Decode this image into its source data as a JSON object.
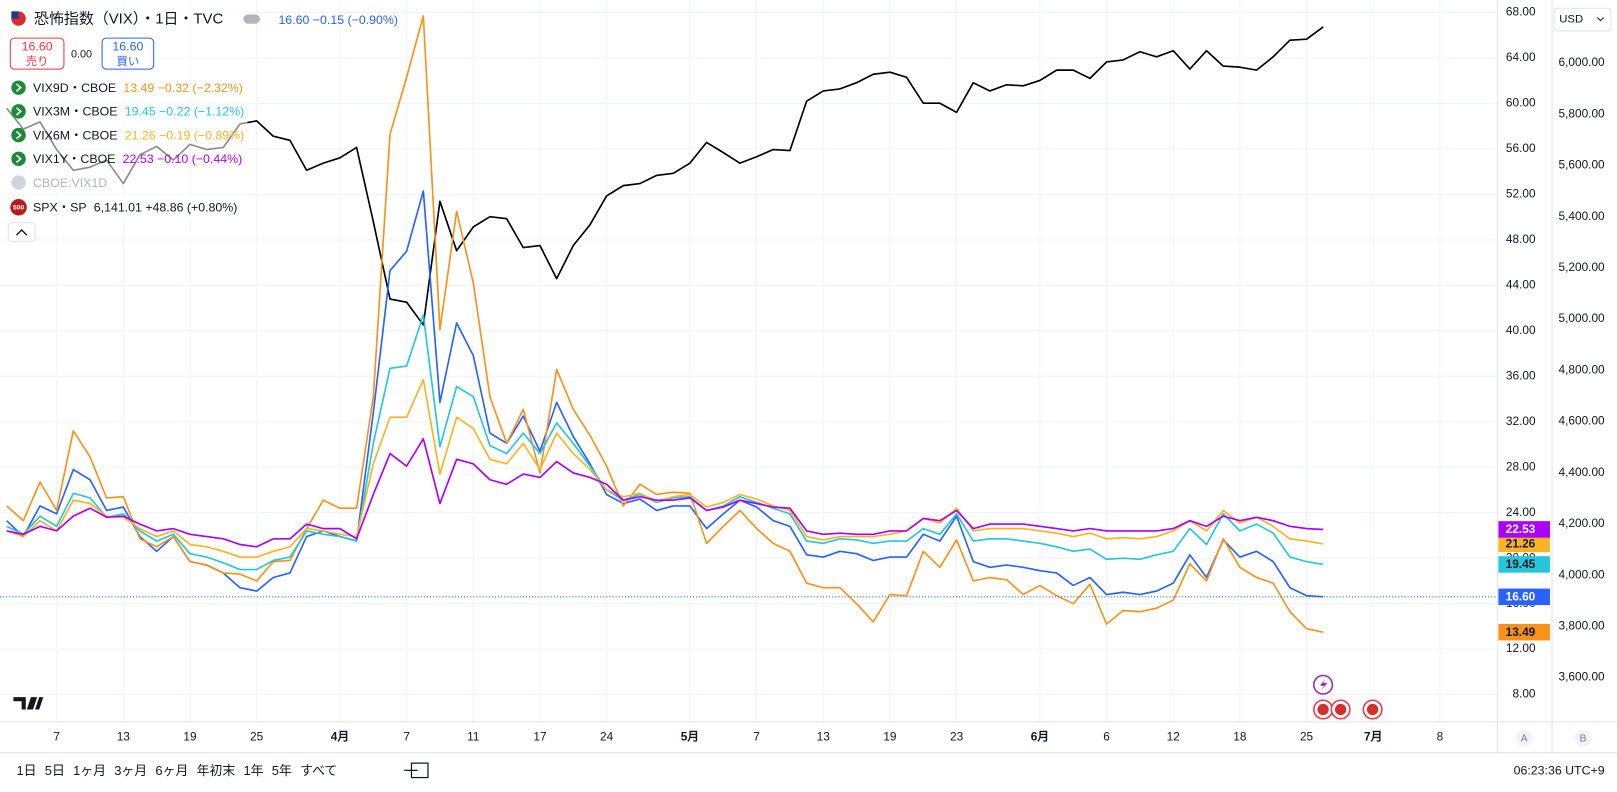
{
  "quote": {
    "sell": {
      "price": "16.60",
      "label": "売り"
    },
    "spread": "0.00",
    "buy": {
      "price": "16.60",
      "label": "買い"
    }
  },
  "legend_extra": {
    "name": "CBOE:VIX1D"
  },
  "currency": "USD",
  "axis_buttons": [
    "A",
    "B"
  ],
  "range_buttons": [
    "1日",
    "5日",
    "1ヶ月",
    "3ヶ月",
    "6ヶ月",
    "年初末",
    "1年",
    "5年",
    "すべて"
  ],
  "clock": "06:23:36 UTC+9",
  "chart_data": {
    "type": "line",
    "x": [
      -3,
      -2,
      -1,
      0,
      1,
      2,
      3,
      4,
      5,
      6,
      7,
      8,
      9,
      10,
      11,
      12,
      13,
      14,
      15,
      16,
      17,
      18,
      19,
      20,
      21,
      22,
      23,
      24,
      25,
      26,
      27,
      28,
      29,
      30,
      31,
      32,
      33,
      34,
      35,
      36,
      37,
      38,
      39,
      40,
      41,
      42,
      43,
      44,
      45,
      46,
      47,
      48,
      49,
      50,
      51,
      52,
      53,
      54,
      55,
      56,
      57,
      58,
      59,
      60,
      61,
      62,
      63,
      64,
      65,
      66,
      67,
      68,
      69,
      70,
      71,
      72,
      73,
      74,
      75,
      76
    ],
    "xlim": [
      -3.4,
      86.45
    ],
    "xticks": [
      {
        "value": 0,
        "label": "7"
      },
      {
        "value": 4,
        "label": "13"
      },
      {
        "value": 8,
        "label": "19"
      },
      {
        "value": 12,
        "label": "25"
      },
      {
        "value": 17,
        "label": "4月"
      },
      {
        "value": 21,
        "label": "7"
      },
      {
        "value": 25,
        "label": "11"
      },
      {
        "value": 29,
        "label": "17"
      },
      {
        "value": 33,
        "label": "24"
      },
      {
        "value": 38,
        "label": "5月"
      },
      {
        "value": 42,
        "label": "7"
      },
      {
        "value": 46,
        "label": "13"
      },
      {
        "value": 50,
        "label": "19"
      },
      {
        "value": 54,
        "label": "23"
      },
      {
        "value": 59,
        "label": "6月"
      },
      {
        "value": 63,
        "label": "6"
      },
      {
        "value": 67,
        "label": "12"
      },
      {
        "value": 71,
        "label": "18"
      },
      {
        "value": 75,
        "label": "25"
      },
      {
        "value": 79,
        "label": "7月"
      },
      {
        "value": 83,
        "label": "8"
      }
    ],
    "ylim": [
      5.6,
      69.1
    ],
    "yticks": [
      {
        "value": 8,
        "label": "8.00"
      },
      {
        "value": 12,
        "label": "12.00"
      },
      {
        "value": 16,
        "label": "16.00"
      },
      {
        "value": 20,
        "label": "20.00"
      },
      {
        "value": 24,
        "label": "24.00"
      },
      {
        "value": 28,
        "label": "28.00"
      },
      {
        "value": 32,
        "label": "32.00"
      },
      {
        "value": 36,
        "label": "36.00"
      },
      {
        "value": 40,
        "label": "40.00"
      },
      {
        "value": 44,
        "label": "44.00"
      },
      {
        "value": 48,
        "label": "48.00"
      },
      {
        "value": 52,
        "label": "52.00"
      },
      {
        "value": 56,
        "label": "56.00"
      },
      {
        "value": 60,
        "label": "60.00"
      },
      {
        "value": 64,
        "label": "64.00"
      },
      {
        "value": 68,
        "label": "68.00"
      }
    ],
    "y2lim": [
      3427,
      6246
    ],
    "y2ticks": [
      {
        "value": 3600,
        "label": "3,600.00"
      },
      {
        "value": 3800,
        "label": "3,800.00"
      },
      {
        "value": 4000,
        "label": "4,000.00"
      },
      {
        "value": 4200,
        "label": "4,200.00"
      },
      {
        "value": 4400,
        "label": "4,400.00"
      },
      {
        "value": 4600,
        "label": "4,600.00"
      },
      {
        "value": 4800,
        "label": "4,800.00"
      },
      {
        "value": 5000,
        "label": "5,000.00"
      },
      {
        "value": 5200,
        "label": "5,200.00"
      },
      {
        "value": 5400,
        "label": "5,400.00"
      },
      {
        "value": 5600,
        "label": "5,600.00"
      },
      {
        "value": 5800,
        "label": "5,800.00"
      },
      {
        "value": 6000,
        "label": "6,000.00"
      }
    ],
    "grid": true,
    "series": [
      {
        "name": "恐怖指数（VIX）・1日・TVC",
        "legend_value": "16.60 −0.15 (−0.90%)",
        "last_label": "16.60",
        "color": "#2962ff",
        "values": [
          23.3,
          21.9,
          24.6,
          23.9,
          27.8,
          26.9,
          24.2,
          24.5,
          21.9,
          20.6,
          21.9,
          19.7,
          19.4,
          18.7,
          17.4,
          17.1,
          18.3,
          18.7,
          21.9,
          22.4,
          21.9,
          21.5,
          32.8,
          45.3,
          47.0,
          52.3,
          33.7,
          40.7,
          37.8,
          31.0,
          30.1,
          32.5,
          29.4,
          33.7,
          30.7,
          28.3,
          25.6,
          24.8,
          25.2,
          24.2,
          24.6,
          24.6,
          22.6,
          23.9,
          25.1,
          24.5,
          23.3,
          22.8,
          20.3,
          20.1,
          20.6,
          20.4,
          19.8,
          20.1,
          20.1,
          22.1,
          21.5,
          23.7,
          19.7,
          19.2,
          19.4,
          19.2,
          18.9,
          18.7,
          17.6,
          18.3,
          16.8,
          17.0,
          16.8,
          17.1,
          17.8,
          20.3,
          18.3,
          21.6,
          20.1,
          20.6,
          19.7,
          17.4,
          16.7,
          16.6
        ]
      },
      {
        "name": "VIX9D・CBOE",
        "legend_value": "13.49 −0.32 (−2.32%)",
        "last_label": "13.49",
        "color": "#f7931a",
        "values": [
          24.6,
          23.3,
          26.7,
          24.2,
          31.2,
          28.9,
          25.3,
          25.4,
          21.7,
          21.0,
          21.9,
          19.7,
          19.4,
          18.7,
          18.6,
          18.0,
          19.7,
          19.8,
          22.6,
          25.1,
          24.4,
          24.4,
          34.2,
          57.3,
          62.3,
          67.7,
          40.1,
          50.5,
          44.2,
          34.2,
          30.1,
          33.1,
          27.5,
          36.6,
          33.1,
          30.8,
          28.1,
          24.6,
          26.5,
          25.6,
          25.8,
          25.7,
          21.3,
          22.8,
          24.2,
          22.6,
          21.3,
          20.6,
          17.8,
          17.4,
          17.4,
          16.0,
          14.4,
          16.8,
          16.7,
          20.6,
          19.2,
          21.6,
          18.0,
          18.3,
          18.1,
          16.8,
          17.6,
          16.7,
          16.0,
          17.7,
          14.2,
          15.4,
          15.3,
          15.6,
          16.3,
          19.5,
          18.0,
          21.7,
          19.2,
          18.3,
          17.8,
          15.3,
          13.8,
          13.49
        ]
      },
      {
        "name": "VIX3M・CBOE",
        "legend_value": "19.45 −0.22 (−1.12%)",
        "last_label": "19.45",
        "color": "#26c6da",
        "values": [
          22.8,
          22.1,
          23.7,
          22.8,
          25.7,
          25.3,
          23.6,
          23.9,
          22.4,
          21.5,
          22.1,
          20.4,
          20.1,
          19.6,
          19.0,
          19.0,
          19.8,
          20.1,
          22.4,
          22.1,
          21.9,
          21.5,
          30.1,
          36.7,
          36.9,
          41.4,
          29.8,
          35.1,
          34.2,
          29.9,
          29.2,
          31.0,
          29.2,
          31.9,
          30.1,
          28.1,
          26.0,
          25.1,
          25.6,
          24.9,
          25.3,
          25.4,
          24.2,
          24.6,
          25.4,
          24.9,
          24.4,
          23.9,
          21.5,
          21.3,
          21.7,
          21.6,
          21.3,
          21.5,
          21.5,
          22.6,
          22.1,
          23.9,
          21.5,
          21.7,
          21.7,
          21.5,
          21.3,
          21.0,
          20.6,
          20.8,
          19.9,
          20.0,
          19.9,
          20.3,
          20.6,
          22.6,
          21.2,
          23.9,
          22.4,
          23.0,
          22.2,
          20.1,
          19.7,
          19.45
        ]
      },
      {
        "name": "VIX6M・CBOE",
        "legend_value": "21.26 −0.19 (−0.89%)",
        "last_label": "21.26",
        "color": "#fbb324",
        "values": [
          22.4,
          21.9,
          23.3,
          22.4,
          25.1,
          24.8,
          23.7,
          23.6,
          22.6,
          21.9,
          22.4,
          21.2,
          21.0,
          20.6,
          20.1,
          20.1,
          20.6,
          21.0,
          22.6,
          22.4,
          22.1,
          21.9,
          28.3,
          32.4,
          32.4,
          35.7,
          27.4,
          32.4,
          31.4,
          28.7,
          28.3,
          30.1,
          27.8,
          31.0,
          29.2,
          27.8,
          26.0,
          25.4,
          25.7,
          25.0,
          25.4,
          25.6,
          24.5,
          24.9,
          25.6,
          25.2,
          24.6,
          24.2,
          21.9,
          21.6,
          21.9,
          21.9,
          21.9,
          22.1,
          22.4,
          23.5,
          23.1,
          24.4,
          22.4,
          22.6,
          22.6,
          22.6,
          22.4,
          22.2,
          21.9,
          22.2,
          21.7,
          21.8,
          21.7,
          21.9,
          22.4,
          23.3,
          22.4,
          24.2,
          23.1,
          23.6,
          22.8,
          21.7,
          21.5,
          21.26
        ]
      },
      {
        "name": "VIX1Y・CBOE",
        "legend_value": "22.53 −0.10 (−0.44%)",
        "last_label": "22.53",
        "color": "#aa00ff",
        "values": [
          22.4,
          22.1,
          22.8,
          22.4,
          23.7,
          24.4,
          23.6,
          23.7,
          23.0,
          22.4,
          22.6,
          22.1,
          21.9,
          21.7,
          21.2,
          21.0,
          21.7,
          21.7,
          23.0,
          22.6,
          22.6,
          21.7,
          25.6,
          29.2,
          28.1,
          30.5,
          24.8,
          28.7,
          28.3,
          26.9,
          26.5,
          27.4,
          27.1,
          28.5,
          27.5,
          27.1,
          26.5,
          25.1,
          25.4,
          25.1,
          25.1,
          25.3,
          24.2,
          24.5,
          25.1,
          24.8,
          24.5,
          24.4,
          22.4,
          22.1,
          22.2,
          22.1,
          22.1,
          22.4,
          22.4,
          23.5,
          23.3,
          24.2,
          22.6,
          23.0,
          23.0,
          23.0,
          22.8,
          22.6,
          22.4,
          22.6,
          22.4,
          22.4,
          22.4,
          22.4,
          22.6,
          23.3,
          22.8,
          23.7,
          23.3,
          23.6,
          23.3,
          22.8,
          22.6,
          22.53
        ]
      },
      {
        "name": "SPX・SP",
        "icon": "500",
        "legend_value": "6,141.01 +48.86 (+0.80%)",
        "color": "#000000",
        "axis": "y2",
        "values": [
          5823,
          5742,
          5770,
          5662,
          5581,
          5593,
          5621,
          5529,
          5642,
          5674,
          5621,
          5682,
          5662,
          5670,
          5762,
          5774,
          5714,
          5698,
          5581,
          5609,
          5630,
          5670,
          5380,
          5078,
          5066,
          4977,
          5460,
          5267,
          5360,
          5400,
          5392,
          5279,
          5287,
          5158,
          5287,
          5368,
          5481,
          5521,
          5529,
          5561,
          5569,
          5609,
          5690,
          5650,
          5609,
          5634,
          5662,
          5658,
          5851,
          5891,
          5899,
          5923,
          5956,
          5964,
          5944,
          5843,
          5843,
          5807,
          5923,
          5891,
          5915,
          5911,
          5932,
          5972,
          5972,
          5940,
          6004,
          6012,
          6044,
          6024,
          6048,
          5976,
          6048,
          5988,
          5984,
          5972,
          6024,
          6089,
          6093,
          6141.01
        ]
      }
    ]
  }
}
